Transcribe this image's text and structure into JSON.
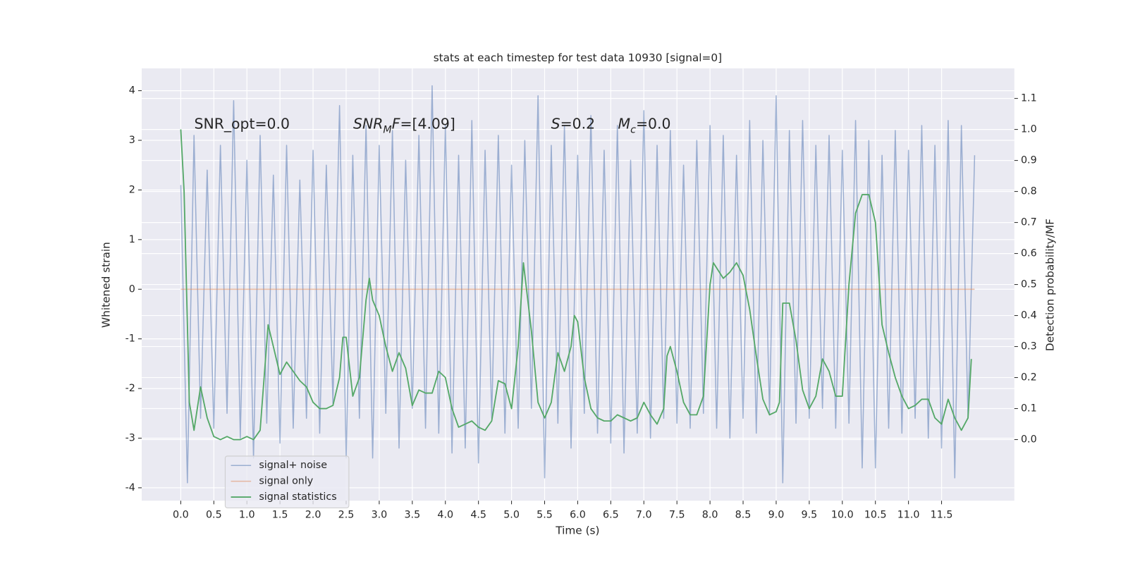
{
  "chart_data": {
    "type": "line",
    "title": "stats at each timestep for test data 10930 [signal=0]",
    "xlabel": "Time (s)",
    "ylabel": "Whitened strain",
    "y2label": "Detection probability/MF",
    "xlim": [
      -0.59,
      12.6
    ],
    "ylim": [
      -4.26,
      4.45
    ],
    "y2lim": [
      -0.197,
      1.197
    ],
    "xticks": [
      {
        "value": 0,
        "label": "0.0"
      },
      0.5,
      {
        "value": 1,
        "label": "1.0"
      },
      1.5,
      {
        "value": 2,
        "label": "2.0"
      },
      2.5,
      {
        "value": 3,
        "label": "3.0"
      },
      3.5,
      {
        "value": 4,
        "label": "4.0"
      },
      4.5,
      {
        "value": 5,
        "label": "5.0"
      },
      5.5,
      {
        "value": 6,
        "label": "6.0"
      },
      6.5,
      {
        "value": 7,
        "label": "7.0"
      },
      7.5,
      {
        "value": 8,
        "label": "8.0"
      },
      8.5,
      {
        "value": 9,
        "label": "9.0"
      },
      9.5,
      {
        "value": 10,
        "label": "10.0"
      },
      10.5,
      {
        "value": 11,
        "label": "11.0"
      },
      11.5
    ],
    "yticks": [
      -4,
      -3,
      -2,
      -1,
      0,
      1,
      2,
      3,
      4
    ],
    "y2ticks": [
      {
        "value": 0,
        "label": "0.0"
      },
      0.1,
      0.2,
      0.3,
      0.4,
      0.5,
      0.6,
      0.7,
      0.8,
      0.9,
      {
        "value": 1,
        "label": "1.0"
      },
      1.1
    ],
    "grid": true,
    "legend": "lower left",
    "annotations": [
      [
        {
          "text": "SNR_opt=0.0"
        }
      ],
      [
        {
          "text": "SNR",
          "italic": true
        },
        {
          "text": "M",
          "italic": true,
          "sub": true
        },
        {
          "text": "F",
          "italic": true
        },
        {
          "text": "=[4.09]"
        }
      ],
      [
        {
          "text": "S",
          "italic": true
        },
        {
          "text": "=0.2"
        }
      ],
      [
        {
          "text": "M",
          "italic": true
        },
        {
          "text": "c",
          "italic": true,
          "sub": true
        },
        {
          "text": "=0.0"
        }
      ]
    ],
    "series": [
      {
        "name": "signal+ noise",
        "color": "#4c72b0",
        "axis": "y",
        "x": [
          0,
          0.1,
          0.2,
          0.3,
          0.4,
          0.5,
          0.6,
          0.7,
          0.8,
          0.9,
          1,
          1.1,
          1.2,
          1.3,
          1.4,
          1.5,
          1.6,
          1.7,
          1.8,
          1.9,
          2,
          2.1,
          2.2,
          2.3,
          2.4,
          2.5,
          2.6,
          2.7,
          2.8,
          2.9,
          3,
          3.1,
          3.2,
          3.3,
          3.4,
          3.5,
          3.6,
          3.7,
          3.8,
          3.9,
          4,
          4.1,
          4.2,
          4.3,
          4.4,
          4.5,
          4.6,
          4.7,
          4.8,
          4.9,
          5,
          5.1,
          5.2,
          5.3,
          5.4,
          5.5,
          5.6,
          5.7,
          5.8,
          5.9,
          6,
          6.1,
          6.2,
          6.3,
          6.4,
          6.5,
          6.6,
          6.7,
          6.8,
          6.9,
          7,
          7.1,
          7.2,
          7.3,
          7.4,
          7.5,
          7.6,
          7.7,
          7.8,
          7.9,
          8,
          8.1,
          8.2,
          8.3,
          8.4,
          8.5,
          8.6,
          8.7,
          8.8,
          8.9,
          9,
          9.1,
          9.2,
          9.3,
          9.4,
          9.5,
          9.6,
          9.7,
          9.8,
          9.9,
          10,
          10.1,
          10.2,
          10.3,
          10.4,
          10.5,
          10.6,
          10.7,
          10.8,
          10.9,
          11,
          11.1,
          11.2,
          11.3,
          11.4,
          11.5,
          11.6,
          11.7,
          11.8,
          11.9,
          12
        ],
        "values": [
          2.1,
          -3.9,
          3.1,
          -2.6,
          2.4,
          -2.8,
          2.9,
          -2.5,
          3.8,
          -3.0,
          2.6,
          -3.4,
          3.1,
          -2.7,
          2.3,
          -3.1,
          2.9,
          -2.8,
          2.2,
          -2.6,
          2.8,
          -2.9,
          2.5,
          -2.3,
          3.7,
          -3.4,
          2.7,
          -2.6,
          3.3,
          -3.4,
          2.9,
          -2.5,
          3.2,
          -3.2,
          2.6,
          -2.4,
          3.1,
          -2.8,
          4.1,
          -2.9,
          3.3,
          -3.3,
          2.7,
          -3.2,
          3.4,
          -3.5,
          2.8,
          -2.6,
          3.1,
          -2.9,
          2.5,
          -2.8,
          3.0,
          -2.4,
          3.9,
          -3.8,
          2.9,
          -2.7,
          3.3,
          -3.2,
          2.7,
          -2.5,
          3.5,
          -2.9,
          2.8,
          -3.1,
          3.3,
          -3.3,
          2.6,
          -2.9,
          3.6,
          -3.0,
          2.9,
          -2.6,
          3.2,
          -2.7,
          2.5,
          -2.8,
          3.0,
          -2.5,
          3.3,
          -2.8,
          3.1,
          -3.0,
          2.7,
          -2.6,
          3.4,
          -2.9,
          3.0,
          -2.5,
          3.9,
          -3.9,
          3.2,
          -2.7,
          3.4,
          -2.6,
          2.9,
          -2.4,
          3.1,
          -2.8,
          2.8,
          -2.7,
          3.4,
          -3.6,
          3.0,
          -3.6,
          2.7,
          -2.8,
          3.2,
          -2.9,
          2.8,
          -2.6,
          3.3,
          -3.0,
          2.9,
          -3.2,
          3.4,
          -3.8,
          3.3,
          -2.6,
          2.7
        ]
      },
      {
        "name": "signal only",
        "color": "#dd8452",
        "axis": "y",
        "x": [
          0,
          12
        ],
        "values": [
          0,
          0
        ]
      },
      {
        "name": "signal statistics",
        "color": "#55a868",
        "axis": "y2",
        "x": [
          0,
          0.05,
          0.13,
          0.2,
          0.3,
          0.4,
          0.5,
          0.6,
          0.7,
          0.8,
          0.9,
          1,
          1.1,
          1.2,
          1.32,
          1.4,
          1.5,
          1.6,
          1.7,
          1.8,
          1.9,
          2,
          2.1,
          2.2,
          2.3,
          2.4,
          2.45,
          2.5,
          2.6,
          2.7,
          2.8,
          2.85,
          2.9,
          3,
          3.1,
          3.2,
          3.3,
          3.4,
          3.5,
          3.6,
          3.7,
          3.8,
          3.9,
          4,
          4.1,
          4.2,
          4.3,
          4.4,
          4.5,
          4.6,
          4.7,
          4.8,
          4.9,
          5,
          5.1,
          5.18,
          5.3,
          5.4,
          5.5,
          5.6,
          5.7,
          5.8,
          5.9,
          5.95,
          6,
          6.1,
          6.2,
          6.3,
          6.4,
          6.5,
          6.6,
          6.7,
          6.8,
          6.9,
          7,
          7.1,
          7.2,
          7.3,
          7.35,
          7.4,
          7.5,
          7.6,
          7.7,
          7.8,
          7.9,
          8,
          8.05,
          8.2,
          8.3,
          8.4,
          8.5,
          8.6,
          8.7,
          8.8,
          8.9,
          9,
          9.05,
          9.1,
          9.2,
          9.3,
          9.4,
          9.5,
          9.6,
          9.7,
          9.8,
          9.9,
          10,
          10.1,
          10.2,
          10.3,
          10.4,
          10.5,
          10.6,
          10.7,
          10.8,
          10.9,
          11,
          11.1,
          11.2,
          11.3,
          11.4,
          11.5,
          11.6,
          11.7,
          11.8,
          11.9,
          11.95
        ],
        "values": [
          1.0,
          0.8,
          0.12,
          0.03,
          0.17,
          0.07,
          0.01,
          0.0,
          0.01,
          0.0,
          0.0,
          0.01,
          0.0,
          0.03,
          0.37,
          0.3,
          0.21,
          0.25,
          0.22,
          0.19,
          0.17,
          0.12,
          0.1,
          0.1,
          0.11,
          0.2,
          0.33,
          0.33,
          0.14,
          0.2,
          0.45,
          0.52,
          0.45,
          0.4,
          0.3,
          0.22,
          0.28,
          0.23,
          0.11,
          0.16,
          0.15,
          0.15,
          0.22,
          0.2,
          0.1,
          0.04,
          0.05,
          0.06,
          0.04,
          0.03,
          0.06,
          0.19,
          0.18,
          0.1,
          0.3,
          0.57,
          0.35,
          0.12,
          0.07,
          0.12,
          0.28,
          0.22,
          0.3,
          0.4,
          0.38,
          0.2,
          0.1,
          0.07,
          0.06,
          0.06,
          0.08,
          0.07,
          0.06,
          0.07,
          0.12,
          0.08,
          0.05,
          0.1,
          0.27,
          0.3,
          0.22,
          0.12,
          0.08,
          0.08,
          0.14,
          0.5,
          0.57,
          0.52,
          0.54,
          0.57,
          0.53,
          0.42,
          0.27,
          0.13,
          0.08,
          0.09,
          0.12,
          0.44,
          0.44,
          0.32,
          0.16,
          0.1,
          0.14,
          0.26,
          0.22,
          0.14,
          0.14,
          0.5,
          0.73,
          0.79,
          0.79,
          0.7,
          0.37,
          0.28,
          0.2,
          0.14,
          0.1,
          0.11,
          0.13,
          0.13,
          0.07,
          0.05,
          0.13,
          0.07,
          0.03,
          0.07,
          0.26
        ]
      }
    ]
  }
}
